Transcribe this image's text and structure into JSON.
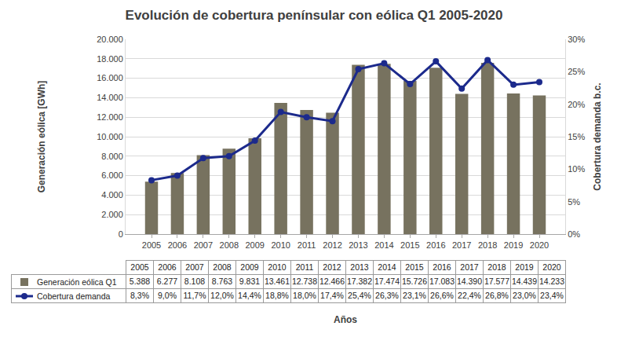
{
  "chart_data": {
    "type": "bar",
    "title": "Evolución de cobertura penínsular con eólica Q1 2005-2020",
    "x_label": "Años",
    "y_label": "Generación eólica [GWh]",
    "y2_label": "Cobertura demanda b.c.",
    "categories": [
      "2005",
      "2006",
      "2007",
      "2008",
      "2009",
      "2010",
      "2011",
      "2012",
      "2013",
      "2014",
      "2015",
      "2016",
      "2017",
      "2018",
      "2019",
      "2020"
    ],
    "series": [
      {
        "name": "Generación eólica Q1",
        "type": "bar",
        "color": "#77725f",
        "values": [
          5388,
          6277,
          8108,
          8763,
          9831,
          13461,
          12738,
          12466,
          17382,
          17474,
          15726,
          17083,
          14390,
          17577,
          14439,
          14233
        ],
        "value_labels": [
          "5.388",
          "6.277",
          "8.108",
          "8.763",
          "9.831",
          "13.461",
          "12.738",
          "12.466",
          "17.382",
          "17.474",
          "15.726",
          "17.083",
          "14.390",
          "17.577",
          "14.439",
          "14.233"
        ]
      },
      {
        "name": "Cobertura demanda",
        "type": "line",
        "axis": "y2",
        "color": "#1c2a8c",
        "marker": "circle",
        "values": [
          8.3,
          9.0,
          11.7,
          12.0,
          14.4,
          18.8,
          18.0,
          17.4,
          25.4,
          26.3,
          23.1,
          26.6,
          22.4,
          26.8,
          23.0,
          23.4
        ],
        "value_labels": [
          "8,3%",
          "9,0%",
          "11,7%",
          "12,0%",
          "14,4%",
          "18,8%",
          "18,0%",
          "17,4%",
          "25,4%",
          "26,3%",
          "23,1%",
          "26,6%",
          "22,4%",
          "26,8%",
          "23,0%",
          "23,4%"
        ]
      }
    ],
    "ylim": [
      0,
      20000
    ],
    "yticks": [
      0,
      {
        "value": 2000,
        "label": "2.000"
      },
      {
        "value": 4000,
        "label": "4.000"
      },
      {
        "value": 6000,
        "label": "6.000"
      },
      {
        "value": 8000,
        "label": "8.000"
      },
      {
        "value": 10000,
        "label": "10.000"
      },
      {
        "value": 12000,
        "label": "12.000"
      },
      {
        "value": 14000,
        "label": "14.000"
      },
      {
        "value": 16000,
        "label": "16.000"
      },
      {
        "value": 18000,
        "label": "18.000"
      },
      {
        "value": 20000,
        "label": "20.000"
      }
    ],
    "y2lim": [
      0,
      30
    ],
    "y2ticks": [
      {
        "value": 0,
        "label": "0%"
      },
      {
        "value": 5,
        "label": "5%"
      },
      {
        "value": 10,
        "label": "10%"
      },
      {
        "value": 15,
        "label": "15%"
      },
      {
        "value": 20,
        "label": "20%"
      },
      {
        "value": 25,
        "label": "25%"
      },
      {
        "value": 30,
        "label": "30%"
      }
    ],
    "grid": true
  }
}
